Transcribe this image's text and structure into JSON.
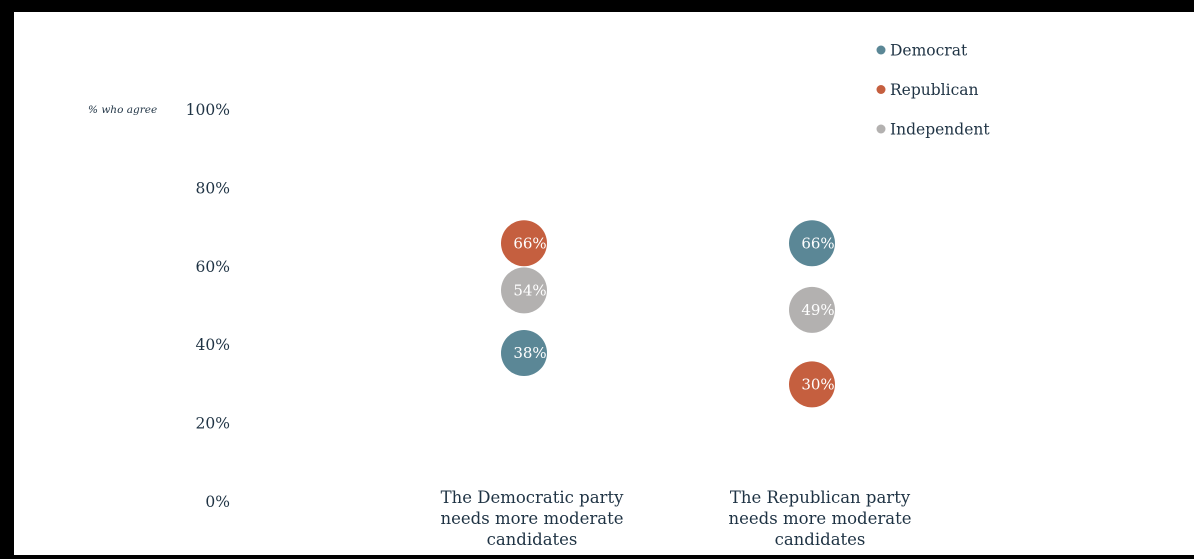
{
  "chart_data": {
    "type": "scatter",
    "title": "",
    "ylabel": "% who agree",
    "ylim": [
      0,
      100
    ],
    "yticks": [
      0,
      20,
      40,
      60,
      80,
      100
    ],
    "ytick_labels": [
      "0%",
      "20%",
      "40%",
      "60%",
      "80%",
      "100%"
    ],
    "categories": [
      "The Democratic party needs more moderate candidates",
      "The Republican party needs more moderate candidates"
    ],
    "category_lines": [
      [
        "The Democratic party",
        "needs more moderate",
        "candidates"
      ],
      [
        "The Republican party",
        "needs more moderate",
        "candidates"
      ]
    ],
    "legend_position": "top-right",
    "series": [
      {
        "name": "Democrat",
        "color": "#5b8796",
        "values": [
          38,
          66
        ],
        "labels": [
          "38%",
          "66%"
        ]
      },
      {
        "name": "Republican",
        "color": "#c55f3f",
        "values": [
          66,
          30
        ],
        "labels": [
          "66%",
          "30%"
        ]
      },
      {
        "name": "Independent",
        "color": "#b3b1b0",
        "values": [
          54,
          49
        ],
        "labels": [
          "54%",
          "49%"
        ]
      }
    ]
  }
}
